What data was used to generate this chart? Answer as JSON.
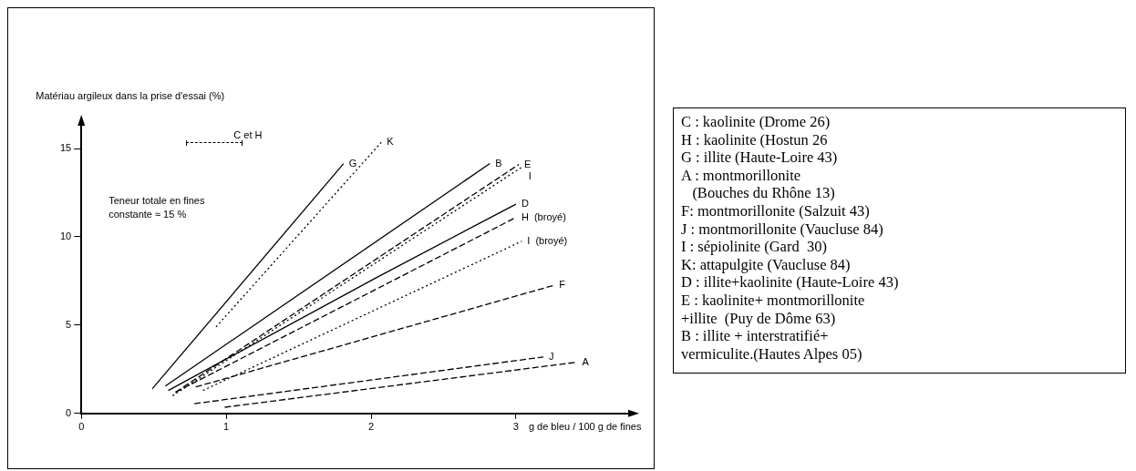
{
  "chart_data": [
    {
      "type": "line",
      "xlabel": "g de bleu / 100 g de fines",
      "ylabel": "Matériau argileux dans la prise d'essai (%)",
      "annotations": [
        "C et H",
        "Teneur totale en fines\nconstante ≈ 15 %"
      ],
      "xlim": [
        0,
        3.8
      ],
      "xticks": [
        0,
        1,
        2,
        3
      ],
      "ylim": [
        0,
        16.5
      ],
      "yticks": [
        0,
        5,
        10,
        15
      ],
      "legend": false,
      "series": [
        {
          "name": "G",
          "color": "#000000",
          "line_style": "solid",
          "x": [
            0.49,
            1.81
          ],
          "values": [
            1.4,
            14.15
          ]
        },
        {
          "name": "K",
          "color": "#000000",
          "line_style": "dotted",
          "x": [
            0.93,
            2.07
          ],
          "values": [
            4.9,
            15.35
          ]
        },
        {
          "name": "B",
          "color": "#000000",
          "line_style": "solid",
          "x": [
            0.58,
            2.82
          ],
          "values": [
            1.55,
            14.15
          ]
        },
        {
          "name": "E",
          "color": "#000000",
          "line_style": "dashed",
          "x": [
            0.65,
            3.02
          ],
          "values": [
            1.2,
            14.1
          ]
        },
        {
          "name": "I",
          "color": "#000000",
          "line_style": "dotted",
          "x": [
            0.63,
            3.05
          ],
          "values": [
            1.0,
            14.0
          ]
        },
        {
          "name": "D",
          "color": "#000000",
          "line_style": "solid",
          "x": [
            0.6,
            2.05,
            3.0
          ],
          "values": [
            1.3,
            7.75,
            11.85
          ]
        },
        {
          "name": "H  (broyé)",
          "color": "#000000",
          "line_style": "dashed",
          "x": [
            0.65,
            3.0
          ],
          "values": [
            1.2,
            11.1
          ]
        },
        {
          "name": "I  (broyé)",
          "color": "#000000",
          "line_style": "dotted",
          "x": [
            0.84,
            3.04
          ],
          "values": [
            1.3,
            9.75
          ]
        },
        {
          "name": "F",
          "color": "#000000",
          "line_style": "dashed",
          "x": [
            0.79,
            3.26
          ],
          "values": [
            1.5,
            7.25
          ]
        },
        {
          "name": "J",
          "color": "#000000",
          "line_style": "dashed",
          "x": [
            0.78,
            3.19
          ],
          "values": [
            0.55,
            3.2
          ]
        },
        {
          "name": "A",
          "color": "#000000",
          "line_style": "dashed",
          "x": [
            0.99,
            3.42
          ],
          "values": [
            0.35,
            2.9
          ]
        }
      ]
    },
    {
      "type": "other",
      "annotations": [
        "C : kaolinite (Drome 26)",
        "H : kaolinite (Hostun 26",
        "G : illite (Haute-Loire 43)",
        "A : montmorillonite",
        "   (Bouches du Rhône 13)",
        "F: montmorillonite (Salzuit 43)",
        "J : montmorillonite (Vaucluse 84)",
        "I : sépiolinite (Gard  30)",
        "K: attapulgite (Vaucluse 84)",
        "D : illite+kaolinite (Haute-Loire 43)",
        "E : kaolinite+ montmorillonite",
        "+illite  (Puy de Dôme 63)",
        "B : illite + interstratifié+",
        "vermiculite.(Hautes Alpes 05)"
      ]
    }
  ]
}
